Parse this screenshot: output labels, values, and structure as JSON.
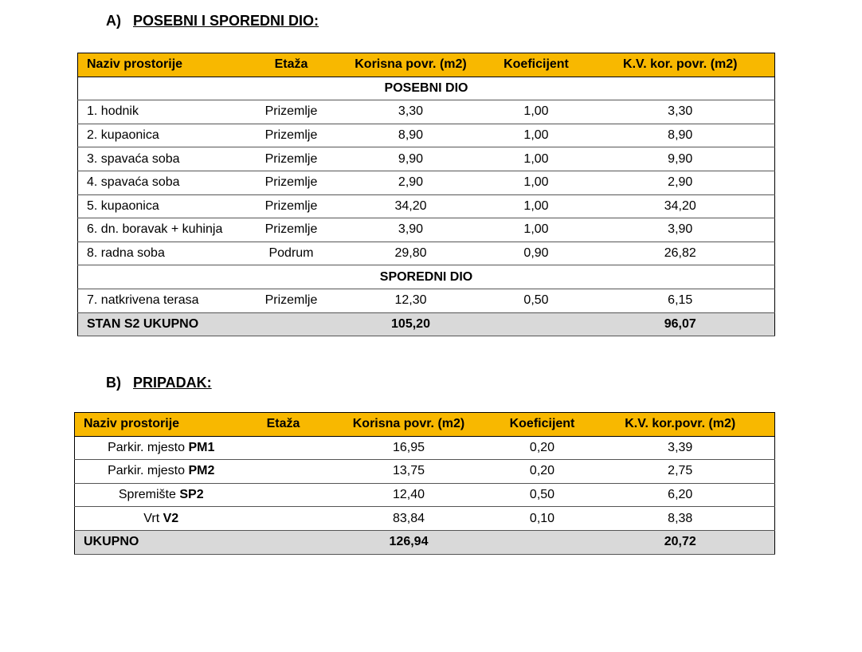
{
  "section_a": {
    "label": "A)",
    "title": "POSEBNI I SPOREDNI DIO:",
    "table": {
      "header": [
        "Naziv prostorije",
        "Etaža",
        "Korisna povr. (m2)",
        "Koeficijent",
        "K.V. kor. povr. (m2)"
      ],
      "rows": [
        {
          "group": "POSEBNI DIO"
        },
        {
          "cells": [
            "1. hodnik",
            "Prizemlje",
            "3,30",
            "1,00",
            "3,30"
          ]
        },
        {
          "cells": [
            "2. kupaonica",
            "Prizemlje",
            "8,90",
            "1,00",
            "8,90"
          ]
        },
        {
          "cells": [
            "3. spavaća soba",
            "Prizemlje",
            "9,90",
            "1,00",
            "9,90"
          ]
        },
        {
          "cells": [
            "4. spavaća soba",
            "Prizemlje",
            "2,90",
            "1,00",
            "2,90"
          ]
        },
        {
          "cells": [
            "5. kupaonica",
            "Prizemlje",
            "34,20",
            "1,00",
            "34,20"
          ]
        },
        {
          "cells": [
            "6. dn. boravak + kuhinja",
            "Prizemlje",
            "3,90",
            "1,00",
            "3,90"
          ]
        },
        {
          "cells": [
            "8. radna soba",
            "Podrum",
            "29,80",
            "0,90",
            "26,82"
          ]
        },
        {
          "group": "SPOREDNI DIO"
        },
        {
          "cells": [
            "7. natkrivena terasa",
            "Prizemlje",
            "12,30",
            "0,50",
            "6,15"
          ]
        }
      ],
      "total": {
        "label": "STAN S2 UKUPNO",
        "area": "105,20",
        "weighted_area": "96,07"
      }
    }
  },
  "section_b": {
    "label": "B)",
    "title": "PRIPADAK:",
    "table": {
      "header": [
        "Naziv prostorije",
        "Etaža",
        "Korisna povr. (m2)",
        "Koeficijent",
        "K.V. kor.povr. (m2)"
      ],
      "rows": [
        {
          "name": "Parkir. mjesto",
          "code": "PM1",
          "area": "16,95",
          "coefficient": "0,20",
          "weighted_area": "3,39"
        },
        {
          "name": "Parkir. mjesto",
          "code": "PM2",
          "area": "13,75",
          "coefficient": "0,20",
          "weighted_area": "2,75"
        },
        {
          "name": "Spremište",
          "code": "SP2",
          "area": "12,40",
          "coefficient": "0,50",
          "weighted_area": "6,20"
        },
        {
          "name": "Vrt",
          "code": "V2",
          "area": "83,84",
          "coefficient": "0,10",
          "weighted_area": "8,38"
        }
      ],
      "total": {
        "label": "UKUPNO",
        "area": "126,94",
        "weighted_area": "20,72"
      }
    }
  }
}
